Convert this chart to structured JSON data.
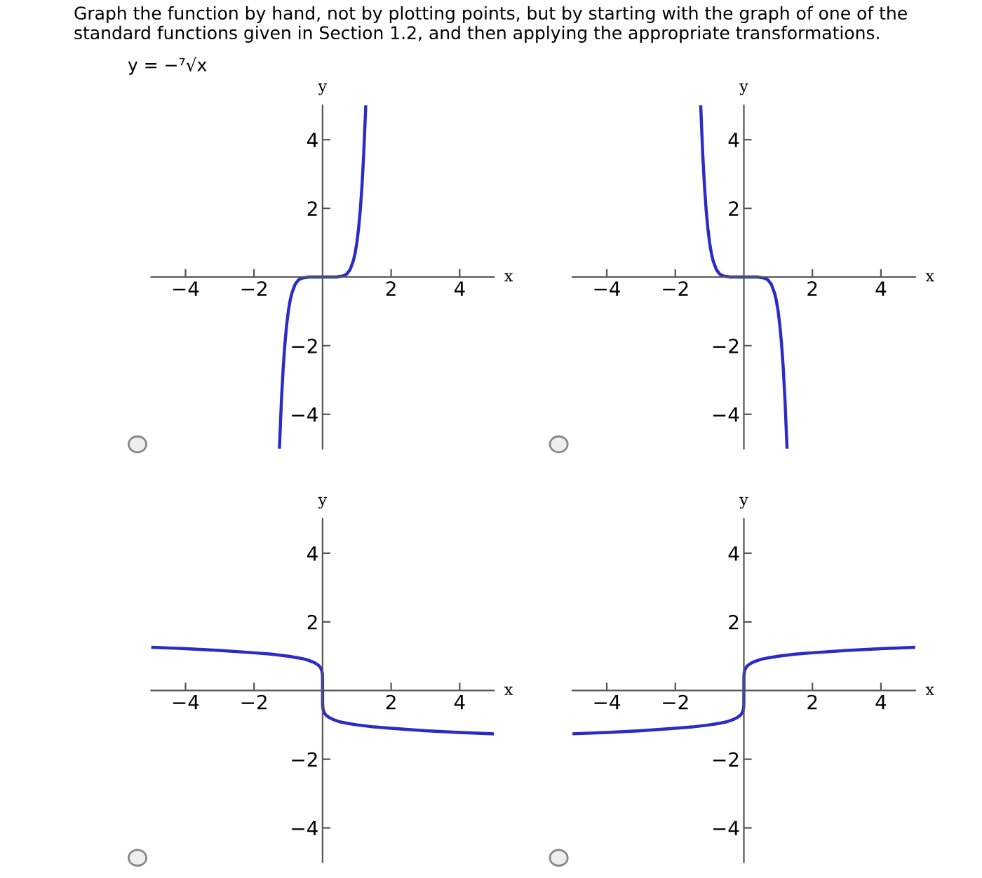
{
  "chart_data": [
    {
      "type": "line",
      "title": "Graph the function by hand, not by plotting points, but by starting with the graph of one of the standard functions given in Section 1.2, and then applying the appropriate transformations.",
      "subtitle": "y = −⁷√x",
      "xlabel": "x",
      "ylabel": "y",
      "xlim": [
        -5,
        5
      ],
      "ylim": [
        -5,
        5
      ],
      "xticks": [
        -4,
        -2,
        2,
        4
      ],
      "yticks": [
        -4,
        -2,
        2,
        4
      ],
      "grid": false,
      "legend": false,
      "marker": "none",
      "line_style": "solid",
      "series": [
        {
          "color": "#2b2bc8",
          "x": [
            -1.26,
            -1.25,
            -1.2,
            -1.15,
            -1.1,
            -1.05,
            -1.0,
            -0.95,
            -0.9,
            -0.8,
            -0.7,
            -0.6,
            -0.4,
            0,
            0.4,
            0.6,
            0.7,
            0.8,
            0.9,
            0.95,
            1.0,
            1.05,
            1.1,
            1.15,
            1.2,
            1.25,
            1.26
          ],
          "values": [
            -5.0,
            -4.77,
            -3.58,
            -2.66,
            -1.95,
            -1.41,
            -1.0,
            -0.7,
            -0.48,
            -0.21,
            -0.08,
            -0.03,
            0,
            0,
            0,
            0.03,
            0.08,
            0.21,
            0.48,
            0.7,
            1.0,
            1.41,
            1.95,
            2.66,
            3.58,
            4.77,
            5.0
          ]
        }
      ]
    },
    {
      "type": "line",
      "xlabel": "x",
      "ylabel": "y",
      "xlim": [
        -5,
        5
      ],
      "ylim": [
        -5,
        5
      ],
      "xticks": [
        -4,
        -2,
        2,
        4
      ],
      "yticks": [
        -4,
        -2,
        2,
        4
      ],
      "grid": false,
      "legend": false,
      "marker": "none",
      "line_style": "solid",
      "series": [
        {
          "color": "#2b2bc8",
          "x": [
            -1.26,
            -1.25,
            -1.2,
            -1.15,
            -1.1,
            -1.05,
            -1.0,
            -0.95,
            -0.9,
            -0.8,
            -0.7,
            -0.6,
            -0.4,
            0,
            0.4,
            0.6,
            0.7,
            0.8,
            0.9,
            0.95,
            1.0,
            1.05,
            1.1,
            1.15,
            1.2,
            1.25,
            1.26
          ],
          "values": [
            5.0,
            4.77,
            3.58,
            2.66,
            1.95,
            1.41,
            1.0,
            0.7,
            0.48,
            0.21,
            0.08,
            0.03,
            0,
            0,
            0,
            -0.03,
            -0.08,
            -0.21,
            -0.48,
            -0.7,
            -1.0,
            -1.41,
            -1.95,
            -2.66,
            -3.58,
            -4.77,
            -5.0
          ]
        }
      ]
    },
    {
      "type": "line",
      "xlabel": "x",
      "ylabel": "y",
      "xlim": [
        -5,
        5
      ],
      "ylim": [
        -5,
        5
      ],
      "xticks": [
        -4,
        -2,
        2,
        4
      ],
      "yticks": [
        -4,
        -2,
        2,
        4
      ],
      "grid": false,
      "legend": false,
      "marker": "none",
      "line_style": "solid",
      "series": [
        {
          "color": "#2b2bc8",
          "x": [
            -5,
            -4,
            -3,
            -2,
            -1.5,
            -1,
            -0.7,
            -0.5,
            -0.3,
            -0.2,
            -0.1,
            -0.05,
            -0.02,
            -0.01,
            -0.003,
            -0.001,
            0,
            0.001,
            0.003,
            0.01,
            0.02,
            0.05,
            0.1,
            0.2,
            0.3,
            0.5,
            0.7,
            1,
            1.5,
            2,
            3,
            4,
            5
          ],
          "values": [
            1.26,
            1.22,
            1.17,
            1.1,
            1.06,
            1.0,
            0.95,
            0.91,
            0.84,
            0.79,
            0.72,
            0.65,
            0.57,
            0.52,
            0.44,
            0.37,
            0,
            -0.37,
            -0.44,
            -0.52,
            -0.57,
            -0.65,
            -0.72,
            -0.79,
            -0.84,
            -0.91,
            -0.95,
            -1.0,
            -1.06,
            -1.1,
            -1.17,
            -1.22,
            -1.26
          ]
        }
      ]
    },
    {
      "type": "line",
      "xlabel": "x",
      "ylabel": "y",
      "xlim": [
        -5,
        5
      ],
      "ylim": [
        -5,
        5
      ],
      "xticks": [
        -4,
        -2,
        2,
        4
      ],
      "yticks": [
        -4,
        -2,
        2,
        4
      ],
      "grid": false,
      "legend": false,
      "marker": "none",
      "line_style": "solid",
      "series": [
        {
          "color": "#2b2bc8",
          "x": [
            -5,
            -4,
            -3,
            -2,
            -1.5,
            -1,
            -0.7,
            -0.5,
            -0.3,
            -0.2,
            -0.1,
            -0.05,
            -0.02,
            -0.01,
            -0.003,
            -0.001,
            0,
            0.001,
            0.003,
            0.01,
            0.02,
            0.05,
            0.1,
            0.2,
            0.3,
            0.5,
            0.7,
            1,
            1.5,
            2,
            3,
            4,
            5
          ],
          "values": [
            -1.26,
            -1.22,
            -1.17,
            -1.1,
            -1.06,
            -1.0,
            -0.95,
            -0.91,
            -0.84,
            -0.79,
            -0.72,
            -0.65,
            -0.57,
            -0.52,
            -0.44,
            -0.37,
            0,
            0.37,
            0.44,
            0.52,
            0.57,
            0.65,
            0.72,
            0.79,
            0.84,
            0.91,
            0.95,
            1.0,
            1.06,
            1.1,
            1.17,
            1.22,
            1.26
          ]
        }
      ]
    }
  ]
}
